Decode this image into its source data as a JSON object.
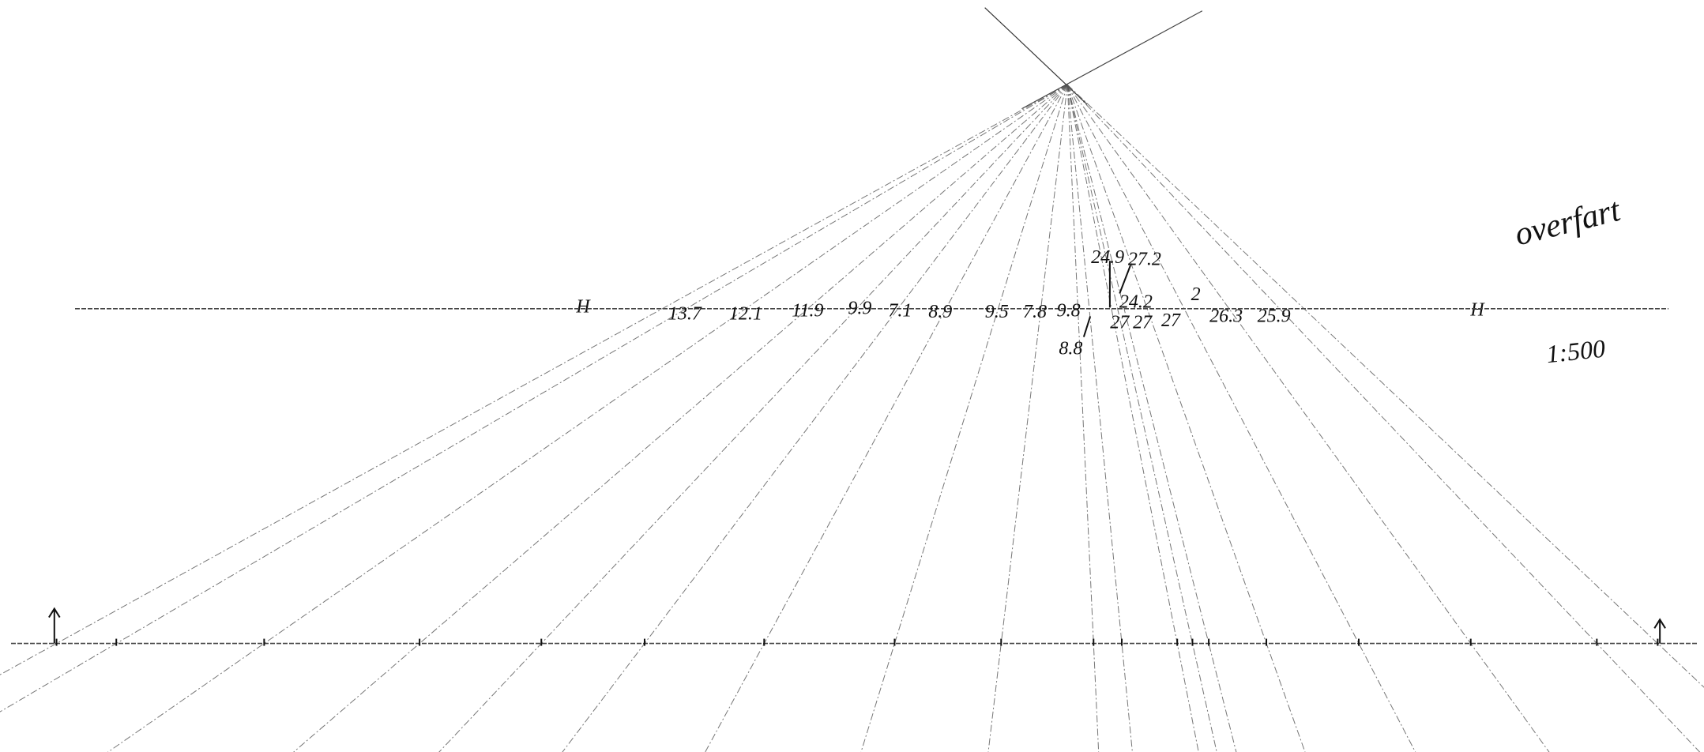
{
  "labels": {
    "horizon_left": "H",
    "horizon_right": "H",
    "title": "overfart",
    "scale": "1:500",
    "heights": [
      "13.7",
      "12.1",
      "11.9",
      "9.9",
      "7.1",
      "8.9",
      "9.5",
      "7.8",
      "9.8",
      "8.8",
      "24.9",
      "27.2",
      "27",
      "27",
      "24.2",
      "27",
      "2",
      "26.3",
      "25.9"
    ]
  }
}
